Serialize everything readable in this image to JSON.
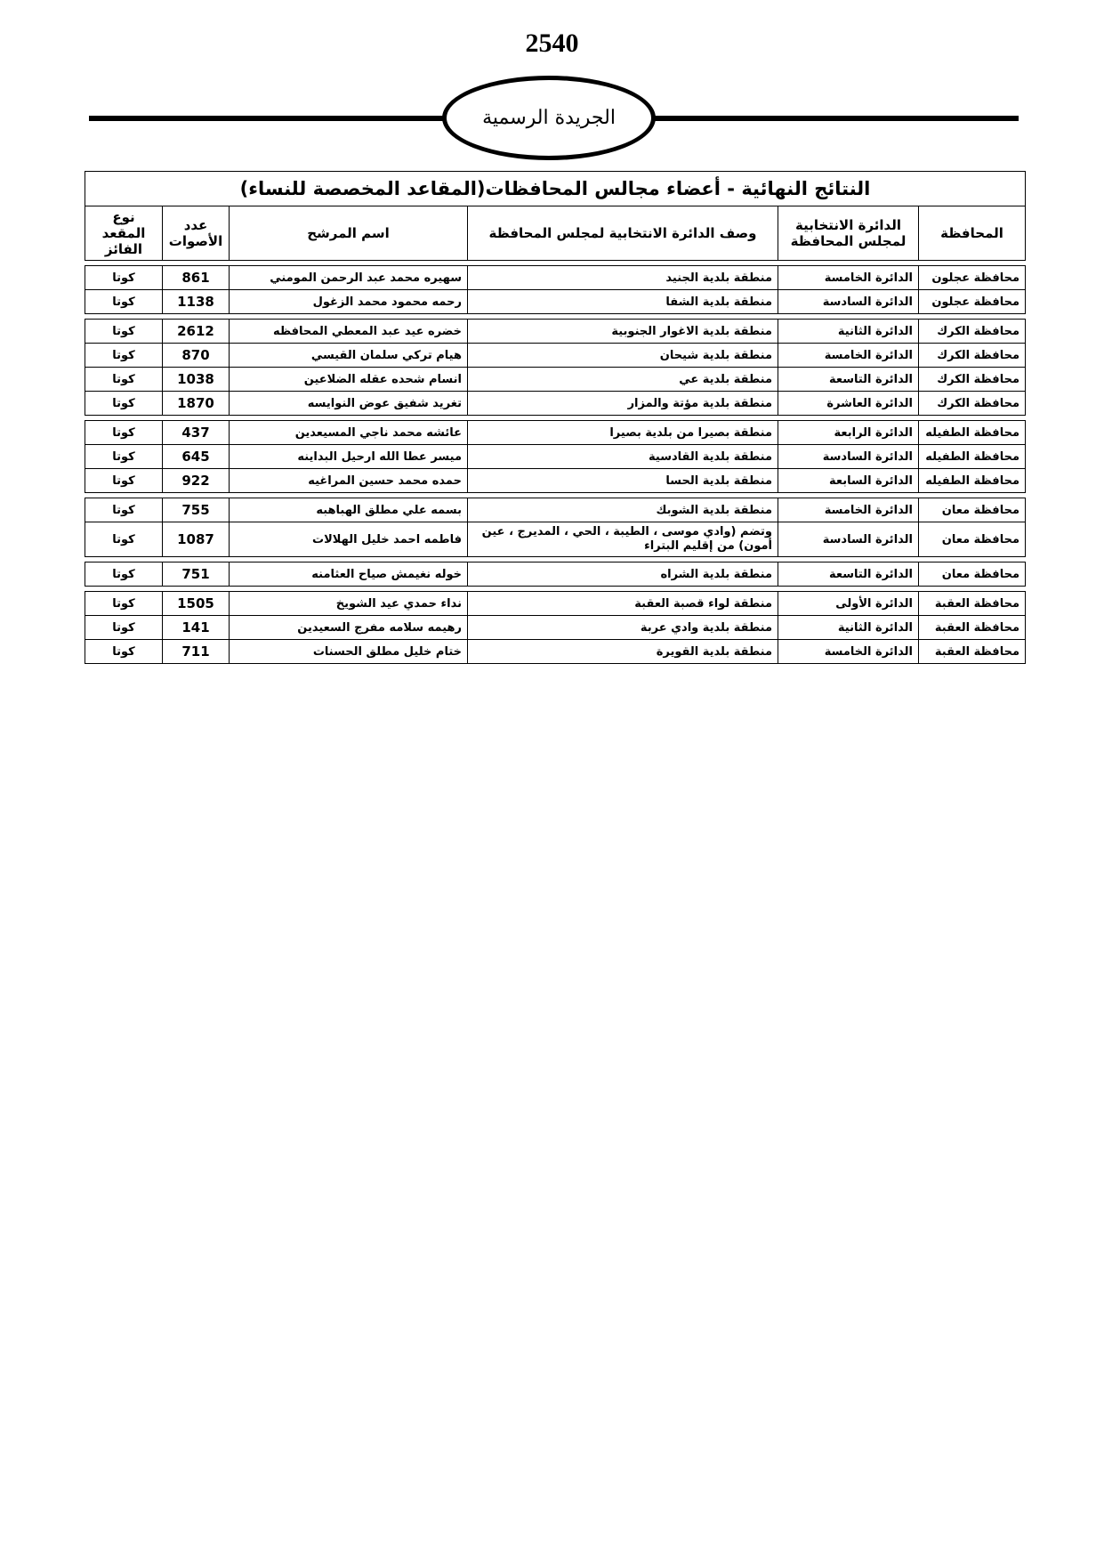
{
  "page_number": "2540",
  "masthead": "الجريدة الرسمية",
  "table": {
    "title": "النتائج النهائية - أعضاء مجالس المحافظات(المقاعد المخصصة للنساء)",
    "headers": {
      "governorate": "المحافظة",
      "district": "الدائرة الانتخابية لمجلس المحافظة",
      "description": "وصف الدائرة الانتخابية لمجلس المحافظة",
      "candidate": "اسم المرشح",
      "votes": "عدد الأصوات",
      "seat_type": "نوع المقعد الفائز"
    },
    "groups": [
      {
        "rows": [
          {
            "governorate": "محافظة عجلون",
            "district": "الدائرة الخامسة",
            "description": "منطقة بلدية الجنيد",
            "candidate": "سهيره محمد عبد الرحمن المومني",
            "votes": "861",
            "seat_type": "كوتا"
          },
          {
            "governorate": "محافظة عجلون",
            "district": "الدائرة السادسة",
            "description": "منطقة بلدية الشفا",
            "candidate": "رحمه محمود محمد الزغول",
            "votes": "1138",
            "seat_type": "كوتا"
          }
        ]
      },
      {
        "rows": [
          {
            "governorate": "محافظة الكرك",
            "district": "الدائرة الثانية",
            "description": "منطقة بلدية الاغوار الجنوبية",
            "candidate": "خضره عيد عبد المعطي المحافظه",
            "votes": "2612",
            "seat_type": "كوتا"
          },
          {
            "governorate": "محافظة الكرك",
            "district": "الدائرة الخامسة",
            "description": "منطقة بلدية شيحان",
            "candidate": "هيام تركي سلمان القيسي",
            "votes": "870",
            "seat_type": "كوتا"
          },
          {
            "governorate": "محافظة الكرك",
            "district": "الدائرة التاسعة",
            "description": "منطقة بلدية عي",
            "candidate": "انسام شحده عقله الضلاعين",
            "votes": "1038",
            "seat_type": "كوتا"
          },
          {
            "governorate": "محافظة الكرك",
            "district": "الدائرة العاشرة",
            "description": "منطقة بلدية مؤتة والمزار",
            "candidate": "تغريد شفيق عوض النوايسه",
            "votes": "1870",
            "seat_type": "كوتا"
          }
        ]
      },
      {
        "rows": [
          {
            "governorate": "محافظة الطفيله",
            "district": "الدائرة الرابعة",
            "description": "منطقة بصيرا من بلدية بصيرا",
            "candidate": "عائشه محمد ناجي المسيعدين",
            "votes": "437",
            "seat_type": "كوتا"
          },
          {
            "governorate": "محافظة الطفيله",
            "district": "الدائرة السادسة",
            "description": "منطقة بلدية القادسية",
            "candidate": "ميسر عطا الله ارحيل البداينه",
            "votes": "645",
            "seat_type": "كوتا"
          },
          {
            "governorate": "محافظة الطفيله",
            "district": "الدائرة السابعة",
            "description": "منطقة بلدية الحسا",
            "candidate": "حمده محمد حسين المراغيه",
            "votes": "922",
            "seat_type": "كوتا"
          }
        ]
      },
      {
        "rows": [
          {
            "governorate": "محافظة معان",
            "district": "الدائرة الخامسة",
            "description": "منطقة بلدية الشوبك",
            "candidate": "بسمه علي مطلق الهباهبه",
            "votes": "755",
            "seat_type": "كوتا"
          },
          {
            "governorate": "محافظة معان",
            "district": "الدائرة السادسة",
            "description": "وتضم (وادي موسى ، الطيبة ، الحي ، المديرج ، عين أمون) من إقليم البتراء",
            "candidate": "فاطمه احمد خليل الهلالات",
            "votes": "1087",
            "seat_type": "كوتا",
            "tall": true
          }
        ]
      },
      {
        "rows": [
          {
            "governorate": "محافظة معان",
            "district": "الدائرة التاسعة",
            "description": "منطقة بلدية الشراه",
            "candidate": "خوله نغيمش صياح العثامنه",
            "votes": "751",
            "seat_type": "كوتا"
          }
        ]
      },
      {
        "rows": [
          {
            "governorate": "محافظة العقبة",
            "district": "الدائرة الأولى",
            "description": "منطقة لواء قصبة العقبة",
            "candidate": "نداء حمدي عيد الشويخ",
            "votes": "1505",
            "seat_type": "كوتا"
          },
          {
            "governorate": "محافظة العقبة",
            "district": "الدائرة الثانية",
            "description": "منطقة بلدية وادي عربة",
            "candidate": "رهيمه سلامه مفرج السعيدين",
            "votes": "141",
            "seat_type": "كوتا"
          },
          {
            "governorate": "محافظة العقبة",
            "district": "الدائرة الخامسة",
            "description": "منطقة بلدية القويرة",
            "candidate": "ختام خليل مطلق الحسنات",
            "votes": "711",
            "seat_type": "كوتا"
          }
        ]
      }
    ]
  }
}
